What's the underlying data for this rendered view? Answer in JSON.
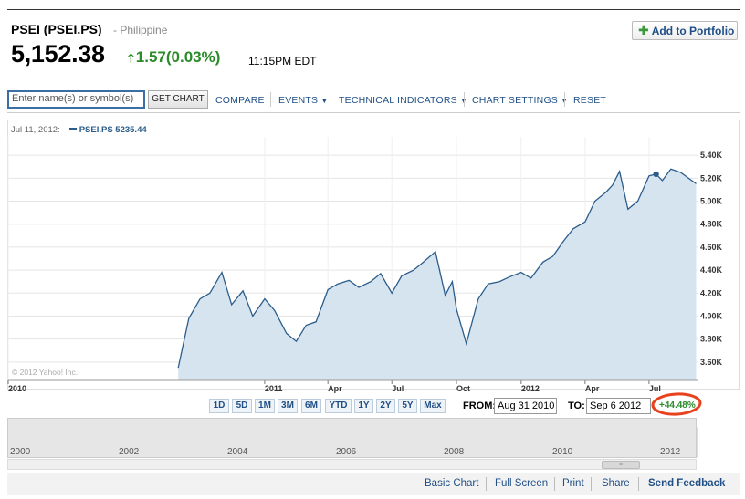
{
  "quote": {
    "name": "PSEI (PSEI.PS)",
    "exchange": "- Philippine",
    "price": "5,152.38",
    "change": "1.57",
    "change_pct": "(0.03%)",
    "time": "11:15PM EDT",
    "add_portfolio": "Add to Portfolio"
  },
  "toolbar": {
    "search_placeholder": "Enter name(s) or symbol(s)",
    "get_chart": "GET CHART",
    "compare": "COMPARE",
    "events": "EVENTS",
    "technical": "TECHNICAL INDICATORS",
    "settings": "CHART SETTINGS",
    "reset": "RESET"
  },
  "legend": {
    "date": "Jul 11, 2012:",
    "series": "PSEI.PS 5235.44"
  },
  "copyright": "© 2012 Yahoo! Inc.",
  "ranges": [
    "1D",
    "5D",
    "1M",
    "3M",
    "6M",
    "YTD",
    "1Y",
    "2Y",
    "5Y",
    "Max"
  ],
  "date_range": {
    "from_label": "FROM:",
    "from": "Aug 31 2010",
    "to_label": "TO:",
    "to": "Sep 6 2012",
    "pct": "+44.48%"
  },
  "navigator_labels": [
    "2000",
    "2002",
    "2004",
    "2006",
    "2008",
    "2010",
    "2012"
  ],
  "bottom_links": [
    "Basic Chart",
    "Full Screen",
    "Print",
    "Share",
    "Send Feedback"
  ],
  "colors": {
    "line": "#2b5d8a",
    "fill": "#d6e4f0",
    "up": "#2a8b2a",
    "link": "#1f4f86",
    "highlight": "#e8411d"
  },
  "chart_data": {
    "type": "area",
    "y_tick_labels": [
      "5.40K",
      "5.20K",
      "5.00K",
      "4.80K",
      "4.60K",
      "4.40K",
      "4.20K",
      "4.00K",
      "3.80K",
      "3.60K"
    ],
    "x_tick_labels": [
      "2010",
      "2011",
      "Apr",
      "Jul",
      "Oct",
      "2012",
      "Apr",
      "Jul"
    ],
    "ylim": [
      3440,
      5560
    ],
    "x": [
      "2010-08-31",
      "2010-09-15",
      "2010-10-01",
      "2010-10-15",
      "2010-11-01",
      "2010-11-15",
      "2010-12-01",
      "2010-12-15",
      "2011-01-01",
      "2011-01-15",
      "2011-02-01",
      "2011-02-15",
      "2011-03-01",
      "2011-03-15",
      "2011-04-01",
      "2011-04-15",
      "2011-05-01",
      "2011-05-15",
      "2011-06-01",
      "2011-06-15",
      "2011-07-01",
      "2011-07-15",
      "2011-08-01",
      "2011-08-15",
      "2011-09-01",
      "2011-09-15",
      "2011-09-25",
      "2011-10-01",
      "2011-10-15",
      "2011-11-01",
      "2011-11-15",
      "2011-12-01",
      "2011-12-15",
      "2012-01-01",
      "2012-01-15",
      "2012-02-01",
      "2012-02-15",
      "2012-03-01",
      "2012-03-15",
      "2012-04-01",
      "2012-04-15",
      "2012-05-01",
      "2012-05-10",
      "2012-05-20",
      "2012-06-01",
      "2012-06-15",
      "2012-07-01",
      "2012-07-11",
      "2012-07-20",
      "2012-08-01",
      "2012-08-15",
      "2012-09-06"
    ],
    "values": [
      3550,
      3980,
      4150,
      4200,
      4380,
      4100,
      4220,
      4000,
      4150,
      4050,
      3850,
      3780,
      3920,
      3950,
      4230,
      4280,
      4310,
      4250,
      4300,
      4370,
      4200,
      4350,
      4400,
      4470,
      4560,
      4180,
      4300,
      4060,
      3760,
      4150,
      4280,
      4300,
      4340,
      4380,
      4330,
      4470,
      4520,
      4650,
      4760,
      4820,
      5000,
      5080,
      5140,
      5260,
      4930,
      5000,
      5220,
      5235,
      5180,
      5280,
      5250,
      5152
    ]
  }
}
